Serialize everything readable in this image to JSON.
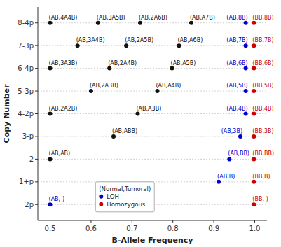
{
  "chart_data": {
    "type": "scatter",
    "xlabel": "B-Allele Frequency",
    "ylabel": "Copy Number",
    "xlim": [
      0.47,
      1.03
    ],
    "ylim": [
      -0.7,
      8.7
    ],
    "xticks": [
      0.5,
      0.6,
      0.7,
      0.8,
      0.9,
      {
        "value": 1.0,
        "label": "1.0"
      }
    ],
    "yticks": [
      {
        "value": 0,
        "label": "2p"
      },
      {
        "value": 1,
        "label": "1+p"
      },
      {
        "value": 2,
        "label": "2"
      },
      {
        "value": 3,
        "label": "3-p"
      },
      {
        "value": 4,
        "label": "4-2p"
      },
      {
        "value": 5,
        "label": "5-3p"
      },
      {
        "value": 6,
        "label": "6-4p"
      },
      {
        "value": 7,
        "label": "7-3p"
      },
      {
        "value": 8,
        "label": "8-4p"
      }
    ],
    "grid": "y",
    "legend": "bottom",
    "legend_title": "(Normal,Tumoral)",
    "series": [
      {
        "color": "#111111",
        "x": [
          0.5,
          0.617,
          0.72,
          0.845,
          0.567,
          0.686,
          0.815,
          0.5,
          0.645,
          0.798,
          0.6,
          0.762,
          0.5,
          0.714,
          0.655,
          0.5
        ],
        "values": [
          8,
          8,
          8,
          8,
          7,
          7,
          7,
          6,
          6,
          6,
          5,
          5,
          4,
          4,
          3,
          2
        ],
        "labels": [
          "(AB,4A4B)",
          "(AB,3A5B)",
          "(AB,2A6B)",
          "(AB,A7B)",
          "(AB,3A4B)",
          "(AB,2A5B)",
          "(AB,A6B)",
          "(AB,3A3B)",
          "(AB,2A4B)",
          "(AB,A5B)",
          "(AB,2A3B)",
          "(AB,A4B)",
          "(AB,2A2B)",
          "(AB,A3B)",
          "(AB,ABB)",
          "(AB,AB)"
        ]
      },
      {
        "name": "LOH",
        "color": "#0000cc",
        "x": [
          0.978,
          0.978,
          0.978,
          0.978,
          0.978,
          0.965,
          0.938,
          0.912,
          0.5
        ],
        "values": [
          8,
          7,
          6,
          5,
          4,
          3,
          2,
          1,
          0
        ],
        "labels": [
          "(AB,8B)",
          "(AB,7B)",
          "(AB,6B)",
          "(AB,5B)",
          "(AB,4B)",
          "(AB,3B)",
          "(AB,BB)",
          "(AB,B)",
          "(AB,-)"
        ]
      },
      {
        "name": "Homozygous",
        "color": "#cc0000",
        "x": [
          0.998,
          0.998,
          0.998,
          0.998,
          0.998,
          0.998,
          0.998,
          0.998,
          0.998
        ],
        "values": [
          8,
          7,
          6,
          5,
          4,
          3,
          2,
          1,
          0
        ],
        "labels": [
          "(BB,8B)",
          "(BB,7B)",
          "(BB,6B)",
          "(BB,5B)",
          "(BB,4B)",
          "(BB,3B)",
          "(BB,BB)",
          "(BB,B)",
          "(BB,-)"
        ]
      }
    ]
  }
}
